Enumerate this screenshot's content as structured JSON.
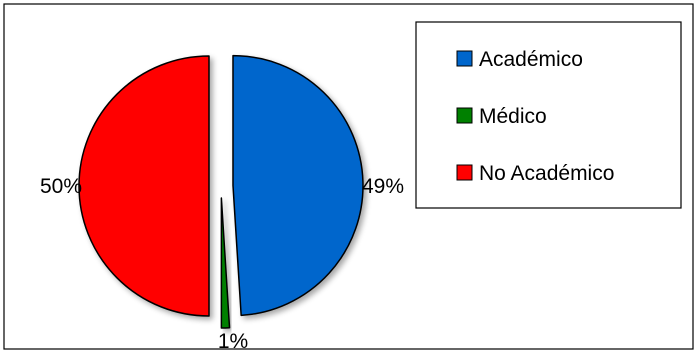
{
  "chart_data": {
    "type": "pie",
    "title": "",
    "slices": [
      {
        "label": "Académico",
        "value": 49,
        "value_label": "49%",
        "color": "#0066cc"
      },
      {
        "label": "Médico",
        "value": 1,
        "value_label": "1%",
        "color": "#008000"
      },
      {
        "label": "No Académico",
        "value": 50,
        "value_label": "50%",
        "color": "#ff0000"
      }
    ],
    "start_angle_deg": 0,
    "direction": "clockwise",
    "exploded": true,
    "legend": {
      "position": "top-right",
      "entries": [
        "Académico",
        "Médico",
        "No Académico"
      ]
    }
  }
}
